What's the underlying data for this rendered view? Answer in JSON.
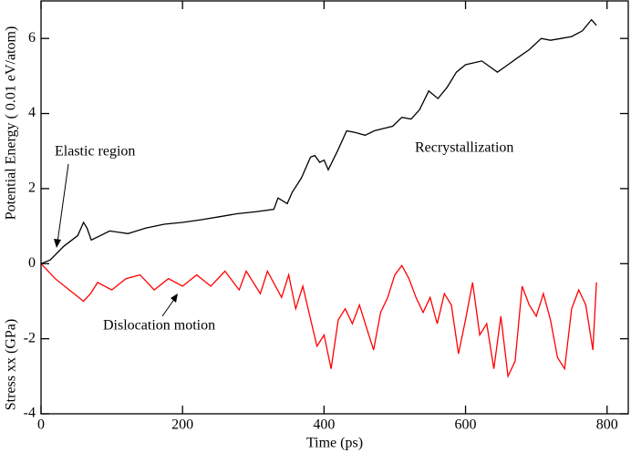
{
  "chart_data": {
    "type": "line",
    "ylabel_top": "Potential Energy ( 0.01 eV/atom)",
    "ylabel_bottom": "Stress xx  (GPa)",
    "xlabel": "Time (ps)",
    "annotations": [
      "Elastic region",
      "Recrystallization",
      "Dislocation motion"
    ],
    "xlim": [
      0,
      830
    ],
    "ylim": [
      -4,
      7
    ],
    "xticks": [
      0,
      200,
      400,
      600,
      800
    ],
    "yticks": [
      -4,
      -2,
      0,
      2,
      4,
      6
    ],
    "grid": false,
    "series": [
      {
        "name": "Potential Energy",
        "color": "#000000",
        "x": [
          0,
          13,
          32,
          52,
          60,
          65,
          71,
          84,
          97,
          123,
          148,
          174,
          200,
          226,
          252,
          277,
          303,
          329,
          335,
          348,
          355,
          368,
          381,
          387,
          394,
          400,
          406,
          419,
          432,
          445,
          458,
          471,
          484,
          497,
          510,
          523,
          535,
          548,
          561,
          574,
          587,
          600,
          623,
          645,
          660,
          671,
          690,
          707,
          720,
          735,
          750,
          765,
          778,
          785
        ],
        "values": [
          0,
          0.1,
          0.46,
          0.75,
          1.1,
          0.95,
          0.63,
          0.75,
          0.87,
          0.8,
          0.95,
          1.05,
          1.1,
          1.17,
          1.25,
          1.33,
          1.38,
          1.45,
          1.75,
          1.6,
          1.9,
          2.28,
          2.84,
          2.88,
          2.7,
          2.76,
          2.5,
          3.0,
          3.54,
          3.49,
          3.42,
          3.54,
          3.6,
          3.66,
          3.9,
          3.85,
          4.1,
          4.6,
          4.4,
          4.7,
          5.1,
          5.3,
          5.4,
          5.1,
          5.3,
          5.45,
          5.7,
          6.0,
          5.95,
          6.0,
          6.05,
          6.2,
          6.5,
          6.35
        ]
      },
      {
        "name": "Stress xx",
        "color": "#ff0000",
        "x": [
          0,
          20,
          40,
          60,
          70,
          80,
          100,
          120,
          140,
          160,
          180,
          200,
          220,
          240,
          260,
          280,
          290,
          310,
          320,
          340,
          350,
          360,
          370,
          380,
          390,
          400,
          410,
          420,
          430,
          440,
          450,
          460,
          470,
          480,
          490,
          500,
          510,
          520,
          530,
          540,
          550,
          560,
          570,
          580,
          590,
          600,
          610,
          620,
          630,
          640,
          650,
          660,
          670,
          680,
          690,
          700,
          710,
          720,
          730,
          740,
          750,
          760,
          770,
          780,
          785
        ],
        "values": [
          0,
          -0.4,
          -0.7,
          -1.0,
          -0.8,
          -0.5,
          -0.7,
          -0.4,
          -0.3,
          -0.7,
          -0.4,
          -0.6,
          -0.3,
          -0.6,
          -0.2,
          -0.7,
          -0.2,
          -0.8,
          -0.2,
          -0.9,
          -0.3,
          -1.2,
          -0.6,
          -1.4,
          -2.2,
          -1.9,
          -2.8,
          -1.5,
          -1.2,
          -1.6,
          -1.1,
          -1.7,
          -2.3,
          -1.3,
          -0.9,
          -0.3,
          -0.05,
          -0.4,
          -0.9,
          -1.3,
          -0.9,
          -1.6,
          -0.8,
          -1.1,
          -2.4,
          -1.5,
          -0.5,
          -1.9,
          -1.6,
          -2.8,
          -1.4,
          -3.0,
          -2.6,
          -0.6,
          -1.1,
          -1.4,
          -0.8,
          -1.5,
          -2.5,
          -2.8,
          -1.2,
          -0.7,
          -1.1,
          -2.3,
          -0.5
        ]
      }
    ]
  }
}
